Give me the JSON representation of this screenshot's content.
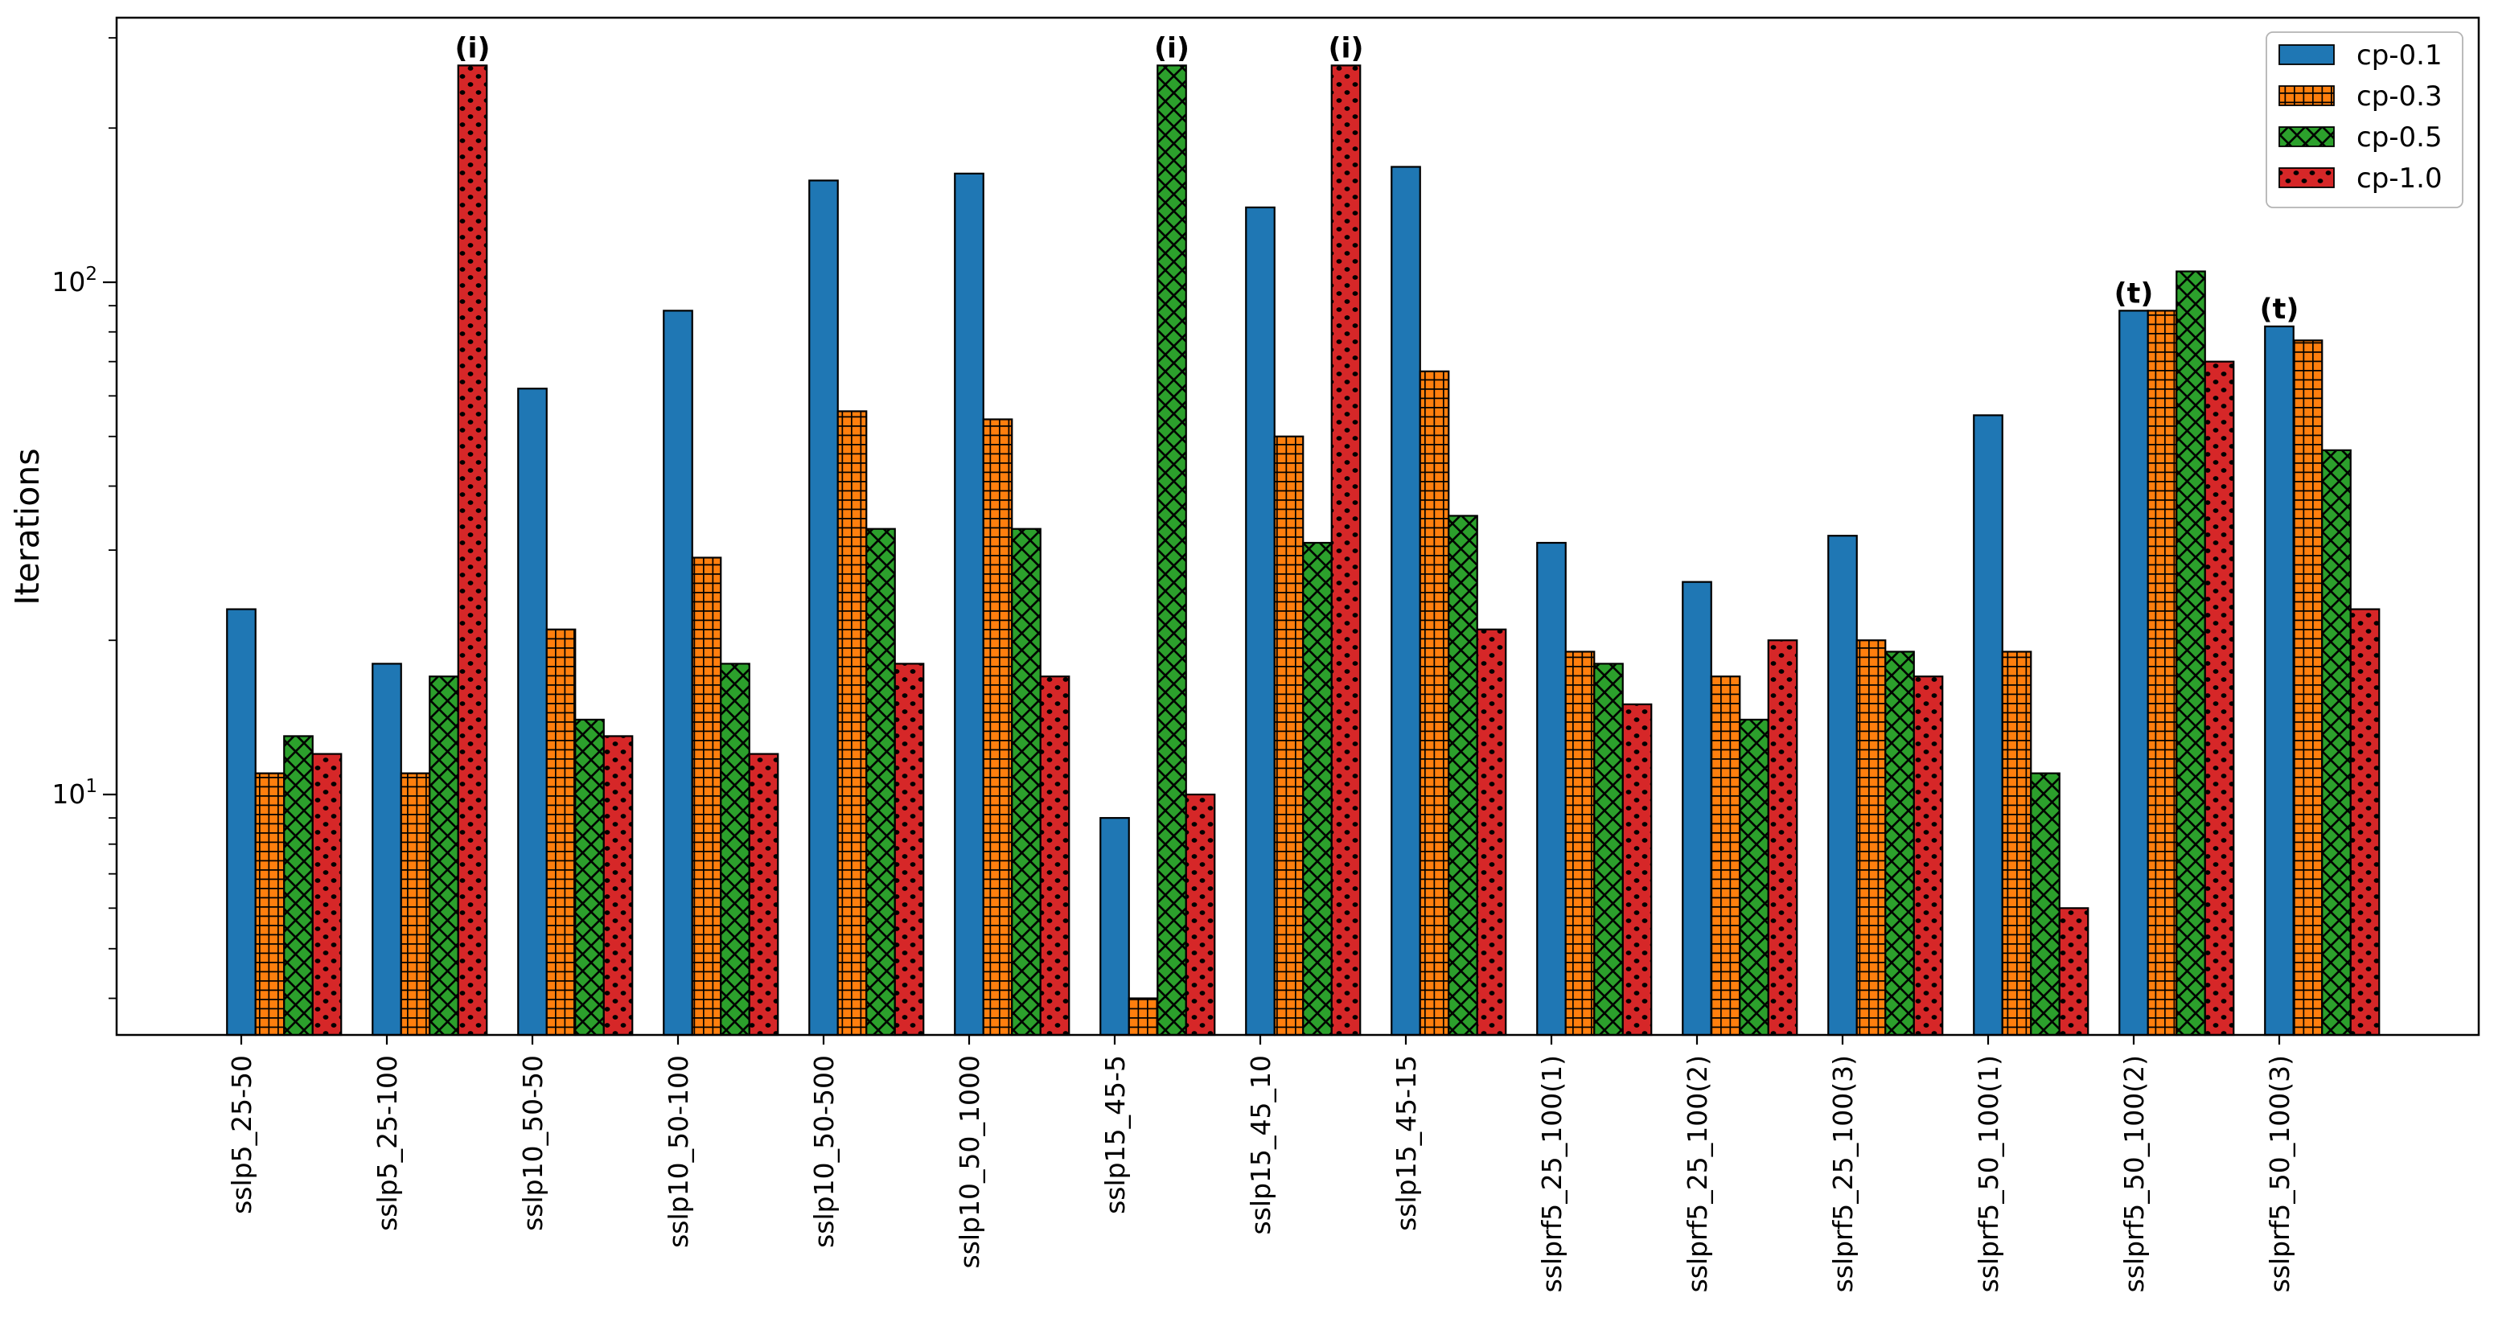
{
  "chart_data": {
    "type": "bar",
    "title": "",
    "xlabel": "",
    "ylabel": "Iterations",
    "y_scale": "log",
    "ylim": [
      3.4,
      330
    ],
    "grid": false,
    "legend_position": "upper right",
    "y_major_ticks": [
      {
        "base": "10",
        "exp": "1",
        "value": 10
      },
      {
        "base": "10",
        "exp": "2",
        "value": 100
      }
    ],
    "y_minor_ticks": [
      4,
      5,
      6,
      7,
      8,
      9,
      20,
      30,
      40,
      50,
      60,
      70,
      80,
      90,
      200,
      300
    ],
    "categories": [
      "sslp5_25-50",
      "sslp5_25-100",
      "sslp10_50-50",
      "sslp10_50-100",
      "sslp10_50-500",
      "sslp10_50_1000",
      "sslp15_45-5",
      "sslp15_45_10",
      "sslp15_45-15",
      "sslprf5_25_100(1)",
      "sslprf5_25_100(2)",
      "sslprf5_25_100(3)",
      "sslprf5_50_100(1)",
      "sslprf5_50_100(2)",
      "sslprf5_50_100(3)"
    ],
    "series": [
      {
        "name": "cp-0.1",
        "color": "#1f77b4",
        "hatch": "none",
        "values": [
          23,
          18,
          62,
          88,
          158,
          163,
          9,
          140,
          168,
          31,
          26,
          32,
          55,
          88,
          82
        ]
      },
      {
        "name": "cp-0.3",
        "color": "#ff7f0e",
        "hatch": "grid",
        "values": [
          11,
          11,
          21,
          29,
          56,
          54,
          4,
          50,
          67,
          19,
          17,
          20,
          19,
          88,
          77
        ]
      },
      {
        "name": "cp-0.5",
        "color": "#2ca02c",
        "hatch": "cross",
        "values": [
          13,
          17,
          14,
          18,
          33,
          33,
          265,
          31,
          35,
          18,
          14,
          19,
          11,
          105,
          47
        ]
      },
      {
        "name": "cp-1.0",
        "color": "#d62728",
        "hatch": "dots",
        "values": [
          12,
          265,
          13,
          12,
          18,
          17,
          10,
          265,
          21,
          15,
          20,
          17,
          6,
          70,
          23
        ]
      }
    ],
    "annotations": [
      {
        "text": "(i)",
        "category_index": 1,
        "series_index": 3
      },
      {
        "text": "(i)",
        "category_index": 6,
        "series_index": 2
      },
      {
        "text": "(i)",
        "category_index": 7,
        "series_index": 3
      },
      {
        "text": "(t)",
        "category_index": 13,
        "series_index": 0
      },
      {
        "text": "(t)",
        "category_index": 14,
        "series_index": 0
      }
    ]
  }
}
